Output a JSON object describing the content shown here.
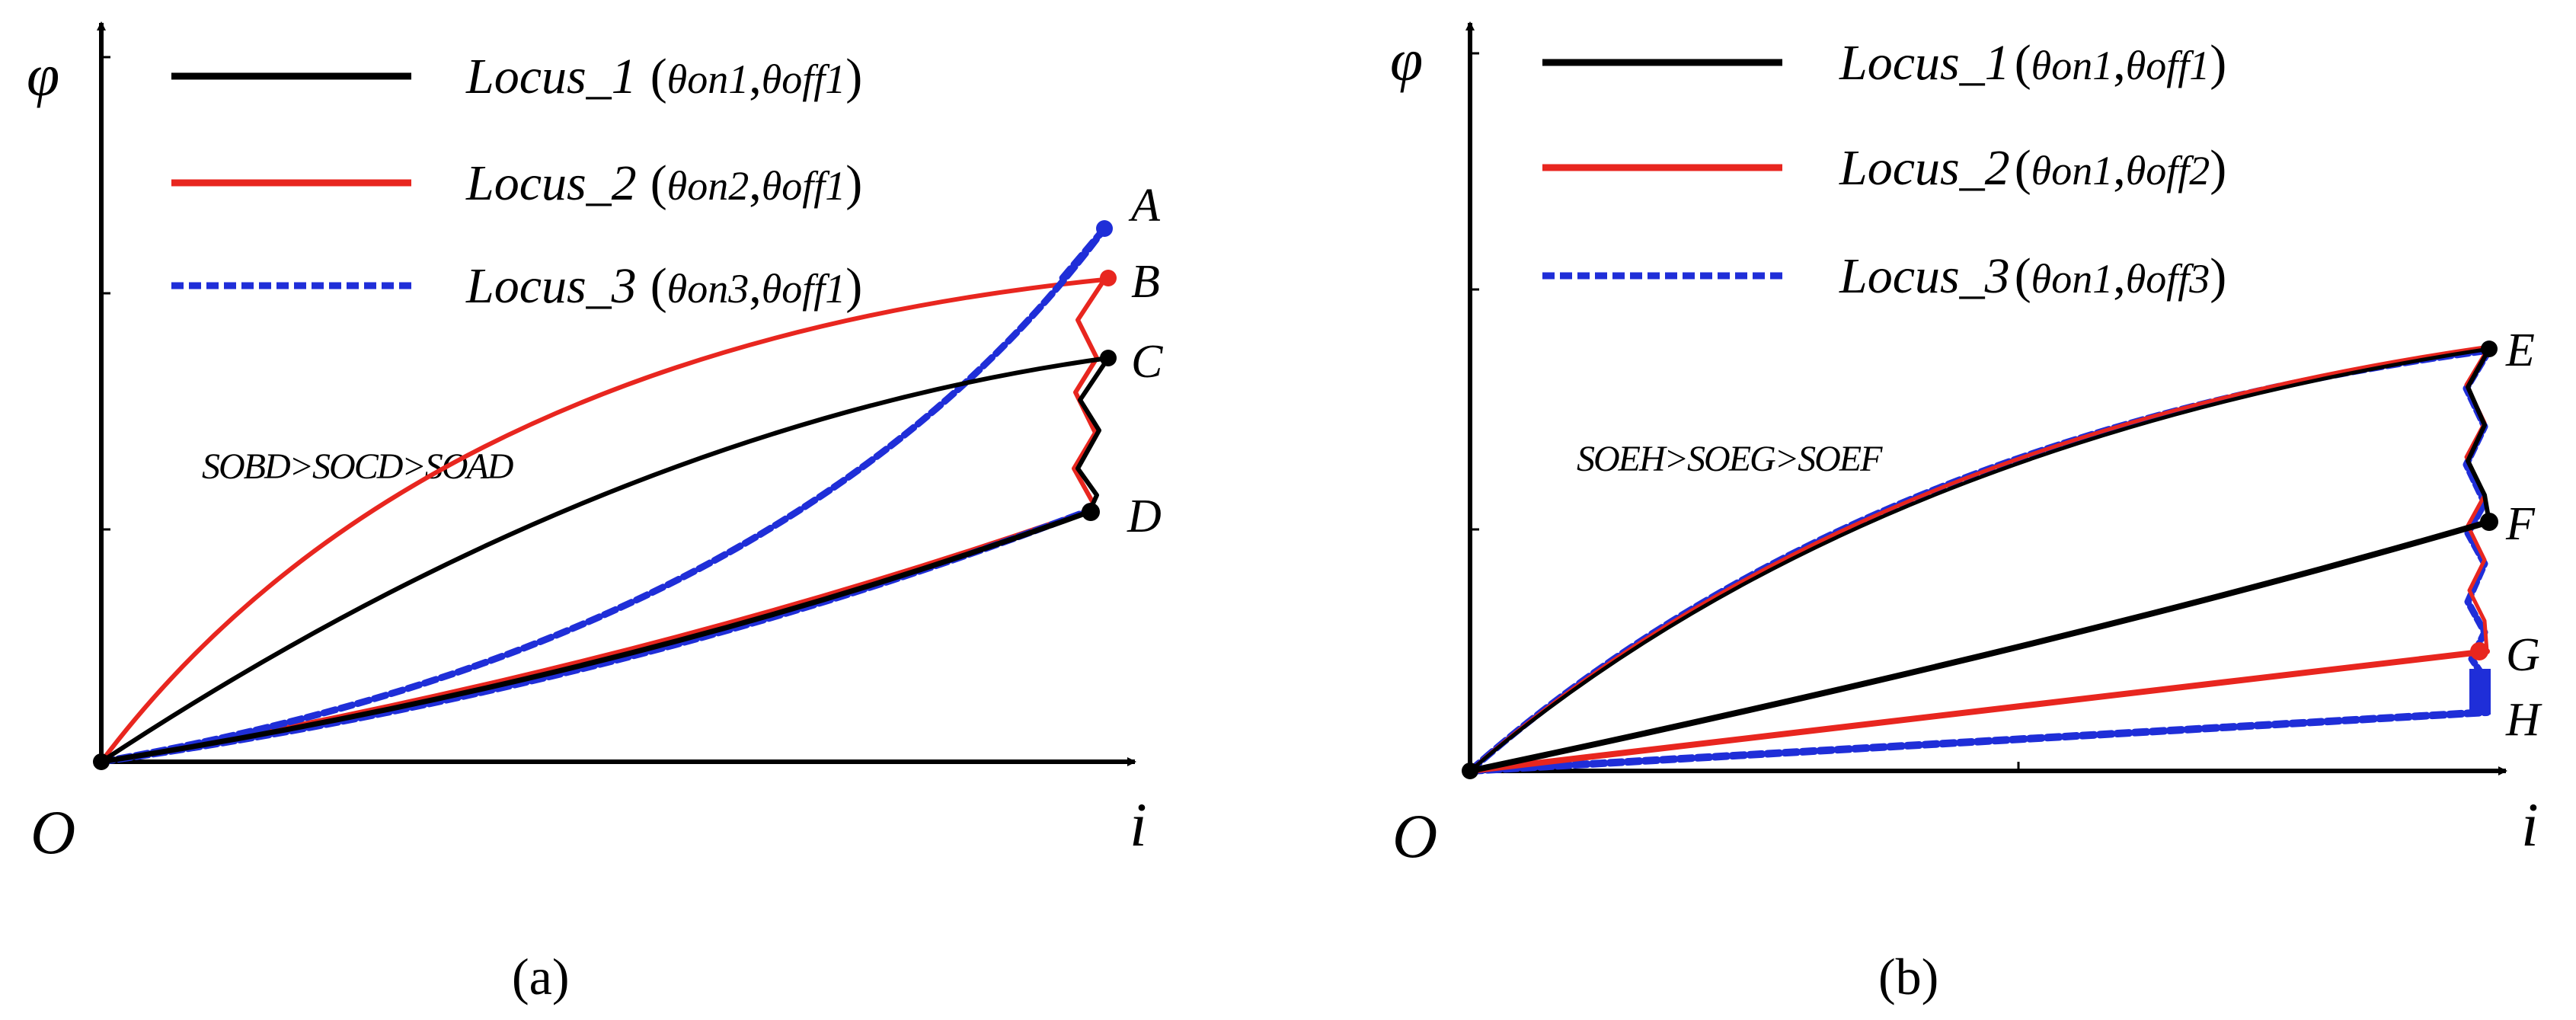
{
  "panel_a": {
    "y_axis_symbol": "φ",
    "x_axis_symbol": "i",
    "origin_label": "O",
    "caption_label": "(a)",
    "legend": [
      {
        "name": "Locus_1",
        "param1": "θon1",
        "param2": "θoff1",
        "color": "#000000",
        "style": "solid"
      },
      {
        "name": "Locus_2",
        "param1": "θon2",
        "param2": "θoff1",
        "color": "#e8261f",
        "style": "solid"
      },
      {
        "name": "Locus_3",
        "param1": "θon3",
        "param2": "θoff1",
        "color": "#1f2ed8",
        "style": "dashed"
      }
    ],
    "area_relation": "SOBD>SOCD>SOAD",
    "point_labels": [
      "A",
      "B",
      "C",
      "D"
    ]
  },
  "panel_b": {
    "y_axis_symbol": "φ",
    "x_axis_symbol": "i",
    "origin_label": "O",
    "caption_label": "(b)",
    "legend": [
      {
        "name": "Locus_1",
        "param1": "θon1",
        "param2": "θoff1",
        "color": "#000000",
        "style": "solid"
      },
      {
        "name": "Locus_2",
        "param1": "θon1",
        "param2": "θoff2",
        "color": "#e8261f",
        "style": "solid"
      },
      {
        "name": "Locus_3",
        "param1": "θon1",
        "param2": "θoff3",
        "color": "#1f2ed8",
        "style": "dashed"
      }
    ],
    "area_relation": "SOEH>SOEG>SOEF",
    "point_labels": [
      "E",
      "F",
      "G",
      "H"
    ]
  }
}
